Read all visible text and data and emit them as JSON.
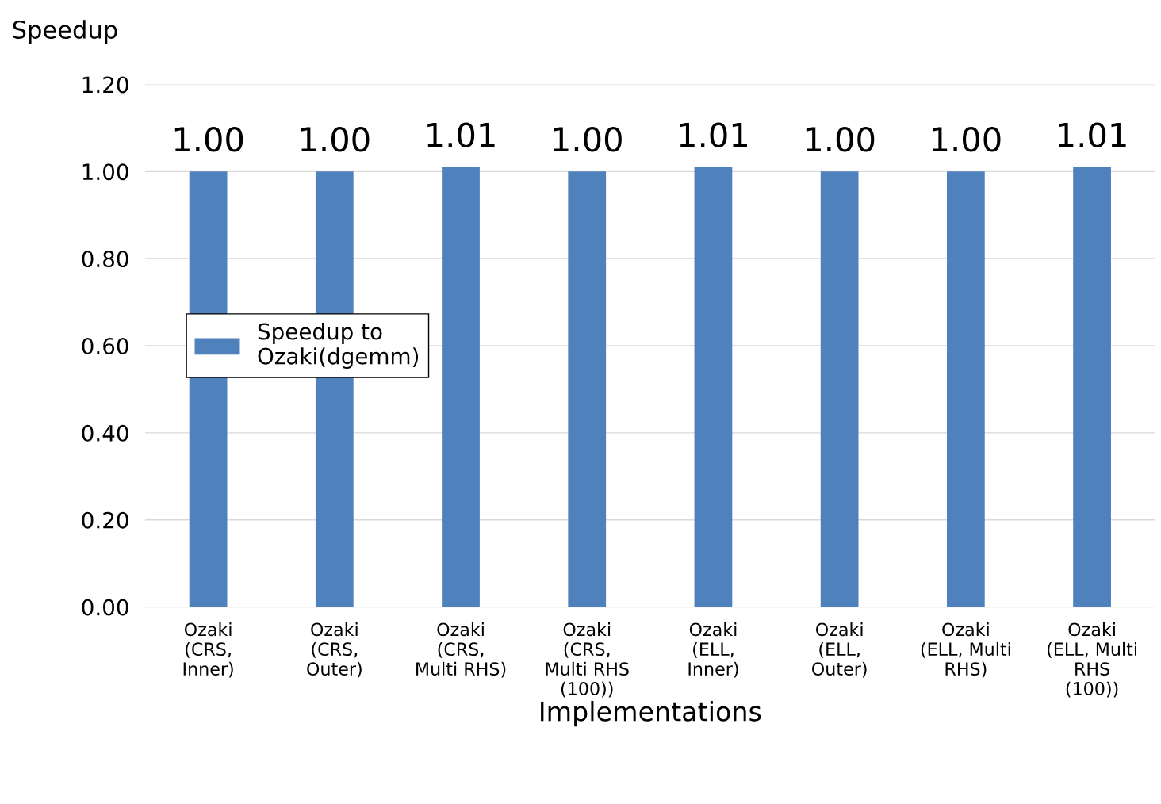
{
  "chart_data": {
    "type": "bar",
    "ylabel": "Speedup",
    "xlabel": "Implementations",
    "categories": [
      "Ozaki\n(CRS,\nInner)",
      "Ozaki\n(CRS,\nOuter)",
      "Ozaki\n(CRS,\nMulti RHS)",
      "Ozaki\n(CRS,\nMulti RHS\n(100))",
      "Ozaki\n(ELL,\nInner)",
      "Ozaki\n(ELL,\nOuter)",
      "Ozaki\n(ELL, Multi\nRHS)",
      "Ozaki\n(ELL, Multi\nRHS\n(100))"
    ],
    "series": [
      {
        "name": "Speedup to\nOzaki(dgemm)",
        "color": "#4f81bd",
        "values": [
          1.0,
          1.0,
          1.01,
          1.0,
          1.01,
          1.0,
          1.0,
          1.01
        ],
        "value_labels": [
          "1.00",
          "1.00",
          "1.01",
          "1.00",
          "1.01",
          "1.00",
          "1.00",
          "1.01"
        ]
      }
    ],
    "ylim": [
      0,
      1.2
    ],
    "yticks": [
      {
        "value": 0,
        "label": "0.00"
      },
      {
        "value": 0.2,
        "label": "0.20"
      },
      {
        "value": 0.4,
        "label": "0.40"
      },
      {
        "value": 0.6,
        "label": "0.60"
      },
      {
        "value": 0.8,
        "label": "0.80"
      },
      {
        "value": 1.0,
        "label": "1.00"
      },
      {
        "value": 1.2,
        "label": "1.20"
      }
    ],
    "grid": "y",
    "legend": "center left"
  }
}
